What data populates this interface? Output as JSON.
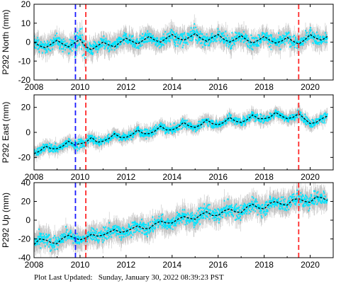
{
  "footer": {
    "label": "Plot Last Updated:",
    "timestamp": "Sunday, January 30, 2022 08:39:23 PST"
  },
  "style": {
    "obs_color": "#00e5ff",
    "err_color": "#b0b0b0",
    "model_color": "#000000",
    "blue_line_color": "#1a1aff",
    "red_line_color": "#ff2a2a"
  },
  "chart_data": [
    {
      "type": "scatter",
      "ylabel": "P292 North (mm)",
      "xlim": [
        2008,
        2021
      ],
      "ylim": [
        -20,
        20
      ],
      "xticks": [
        2008,
        2010,
        2012,
        2014,
        2016,
        2018,
        2020
      ],
      "yticks": [
        -20,
        -10,
        0,
        10,
        20
      ],
      "vlines": [
        {
          "x": 2009.8,
          "color": "blue"
        },
        {
          "x": 2010.25,
          "color": "red"
        },
        {
          "x": 2019.5,
          "color": "red"
        }
      ],
      "model": {
        "x": [
          2008.0,
          2008.25,
          2008.5,
          2008.75,
          2009.0,
          2009.25,
          2009.5,
          2009.75,
          2010.0,
          2010.25,
          2010.5,
          2010.75,
          2011.0,
          2011.25,
          2011.5,
          2011.75,
          2012.0,
          2012.25,
          2012.5,
          2012.75,
          2013.0,
          2013.25,
          2013.5,
          2013.75,
          2014.0,
          2014.25,
          2014.5,
          2014.75,
          2015.0,
          2015.25,
          2015.5,
          2015.75,
          2016.0,
          2016.25,
          2016.5,
          2016.75,
          2017.0,
          2017.25,
          2017.5,
          2017.75,
          2018.0,
          2018.25,
          2018.5,
          2018.75,
          2019.0,
          2019.25,
          2019.5,
          2019.75,
          2020.0,
          2020.25,
          2020.5,
          2020.75
        ],
        "y": [
          0.0,
          -2.0,
          -3.0,
          -1.0,
          1.0,
          -1.0,
          -2.5,
          -0.5,
          1.5,
          -2.5,
          -4.0,
          -2.0,
          0.0,
          -1.5,
          -2.5,
          0.0,
          2.0,
          0.5,
          -1.0,
          1.0,
          3.0,
          1.0,
          0.0,
          2.0,
          4.0,
          2.0,
          1.0,
          2.5,
          4.5,
          2.0,
          0.5,
          2.5,
          4.0,
          1.5,
          0.0,
          1.5,
          3.5,
          1.0,
          -0.5,
          1.0,
          3.0,
          1.0,
          -0.5,
          0.5,
          2.5,
          0.5,
          -1.0,
          1.0,
          4.0,
          2.0,
          1.0,
          3.0
        ]
      },
      "bands": [
        {
          "x0": 2008.0,
          "x1": 2009.75,
          "w": 3
        },
        {
          "x0": 2009.75,
          "x1": 2010.25,
          "w": 5
        },
        {
          "x0": 2010.25,
          "x1": 2014.0,
          "w": 3
        },
        {
          "x0": 2014.0,
          "x1": 2015.25,
          "w": 4
        },
        {
          "x0": 2015.25,
          "x1": 2020.75,
          "w": 3
        }
      ],
      "err_extent": 4
    },
    {
      "type": "scatter",
      "ylabel": "P292 East (mm)",
      "xlim": [
        2008,
        2021
      ],
      "ylim": [
        -30,
        30
      ],
      "xticks": [
        2008,
        2010,
        2012,
        2014,
        2016,
        2018,
        2020
      ],
      "yticks": [
        -20,
        0,
        20
      ],
      "vlines": [
        {
          "x": 2009.8,
          "color": "blue"
        },
        {
          "x": 2010.25,
          "color": "red"
        },
        {
          "x": 2019.5,
          "color": "red"
        }
      ],
      "model": {
        "x": [
          2008.0,
          2008.25,
          2008.5,
          2008.75,
          2009.0,
          2009.25,
          2009.5,
          2009.75,
          2010.0,
          2010.25,
          2010.5,
          2010.75,
          2011.0,
          2011.25,
          2011.5,
          2011.75,
          2012.0,
          2012.25,
          2012.5,
          2012.75,
          2013.0,
          2013.25,
          2013.5,
          2013.75,
          2014.0,
          2014.25,
          2014.5,
          2014.75,
          2015.0,
          2015.25,
          2015.5,
          2015.75,
          2016.0,
          2016.25,
          2016.5,
          2016.75,
          2017.0,
          2017.25,
          2017.5,
          2017.75,
          2018.0,
          2018.25,
          2018.5,
          2018.75,
          2019.0,
          2019.25,
          2019.5,
          2019.75,
          2020.0,
          2020.25,
          2020.5,
          2020.75
        ],
        "y": [
          -17,
          -15,
          -11,
          -13,
          -13,
          -11,
          -7,
          -10,
          -9,
          -8,
          -4,
          -8,
          -7,
          -5,
          -1,
          -4,
          -4,
          -2,
          2,
          -1,
          -1,
          1,
          5,
          2,
          2,
          4,
          8,
          5,
          4,
          6,
          10,
          7,
          6,
          8,
          12,
          9,
          8,
          10,
          14,
          11,
          11,
          12,
          16,
          13,
          11,
          12,
          15,
          11,
          7,
          8,
          11,
          13
        ]
      },
      "bands": [
        {
          "x0": 2008.0,
          "x1": 2009.75,
          "w": 3
        },
        {
          "x0": 2009.75,
          "x1": 2010.25,
          "w": 4
        },
        {
          "x0": 2010.25,
          "x1": 2020.75,
          "w": 3
        }
      ],
      "err_extent": 4
    },
    {
      "type": "scatter",
      "ylabel": "P292 Up (mm)",
      "xlim": [
        2008,
        2021
      ],
      "ylim": [
        -40,
        40
      ],
      "xticks": [
        2008,
        2010,
        2012,
        2014,
        2016,
        2018,
        2020
      ],
      "yticks": [
        -40,
        -20,
        0,
        20,
        40
      ],
      "vlines": [
        {
          "x": 2009.8,
          "color": "blue"
        },
        {
          "x": 2010.25,
          "color": "red"
        },
        {
          "x": 2019.5,
          "color": "red"
        }
      ],
      "model": {
        "x": [
          2008.0,
          2008.25,
          2008.5,
          2008.75,
          2009.0,
          2009.25,
          2009.5,
          2009.75,
          2010.0,
          2010.25,
          2010.5,
          2010.75,
          2011.0,
          2011.25,
          2011.5,
          2011.75,
          2012.0,
          2012.25,
          2012.5,
          2012.75,
          2013.0,
          2013.25,
          2013.5,
          2013.75,
          2014.0,
          2014.25,
          2014.5,
          2014.75,
          2015.0,
          2015.25,
          2015.5,
          2015.75,
          2016.0,
          2016.25,
          2016.5,
          2016.75,
          2017.0,
          2017.25,
          2017.5,
          2017.75,
          2018.0,
          2018.25,
          2018.5,
          2018.75,
          2019.0,
          2019.25,
          2019.5,
          2019.75,
          2020.0,
          2020.25,
          2020.5,
          2020.75
        ],
        "y": [
          -26,
          -20,
          -21,
          -24,
          -25,
          -19,
          -16,
          -19,
          -21,
          -19,
          -15,
          -17,
          -16,
          -13,
          -10,
          -13,
          -12,
          -9,
          -6,
          -9,
          -9,
          -4,
          -1,
          -3,
          -3,
          1,
          4,
          2,
          1,
          6,
          9,
          5,
          5,
          10,
          12,
          9,
          8,
          14,
          17,
          13,
          12,
          18,
          20,
          17,
          16,
          22,
          23,
          20,
          19,
          25,
          24,
          21
        ]
      },
      "bands": [
        {
          "x0": 2008.0,
          "x1": 2009.5,
          "w": 7
        },
        {
          "x0": 2009.5,
          "x1": 2010.5,
          "w": 5
        },
        {
          "x0": 2010.5,
          "x1": 2020.75,
          "w": 7
        }
      ],
      "err_extent": 9
    }
  ]
}
